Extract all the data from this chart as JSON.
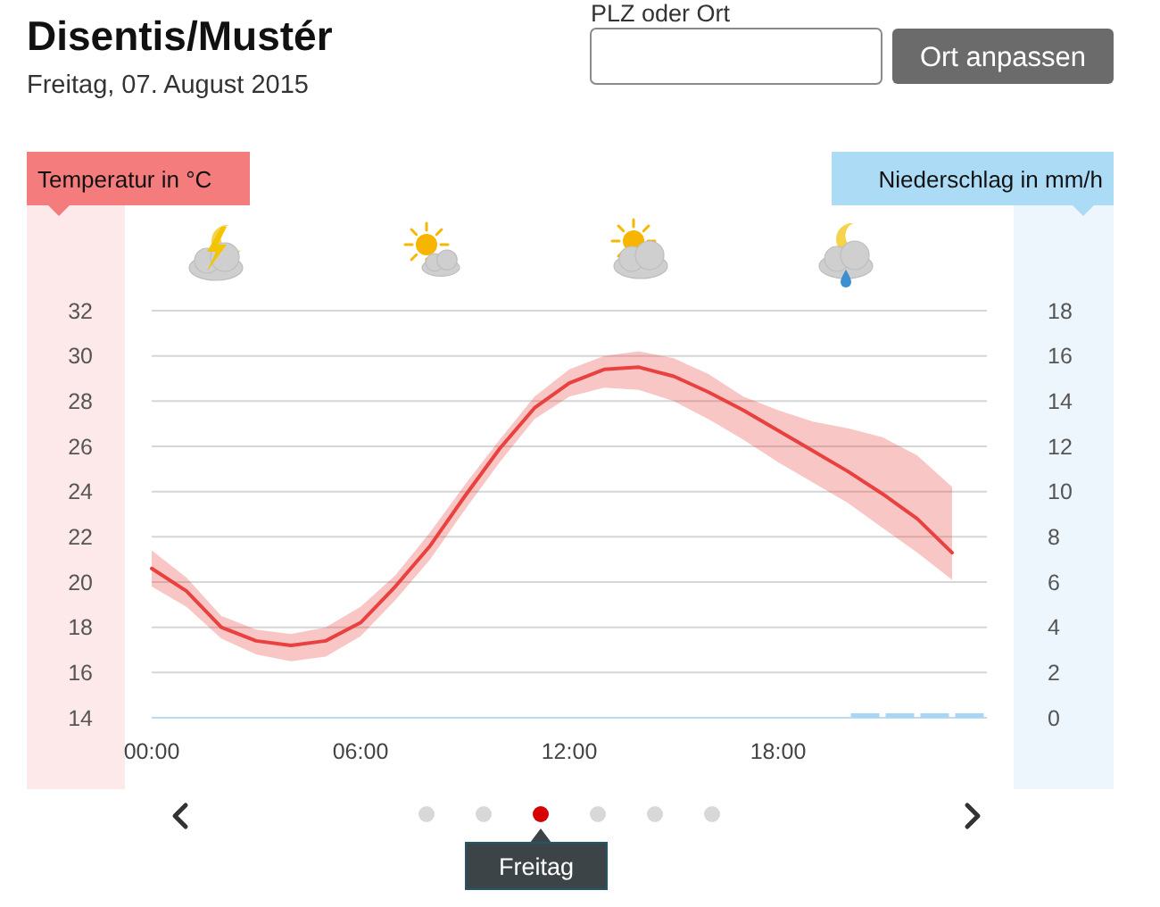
{
  "chart_data": {
    "type": "line",
    "title": "Disentis/Mustér",
    "subtitle": "Freitag, 07. August 2015",
    "ylabel": "Temperatur in °C",
    "y2label": "Niederschlag in mm/h",
    "annotations": [
      "PLZ oder Ort",
      "Ort anpassen",
      "Freitag"
    ],
    "x": [
      0,
      1,
      2,
      3,
      4,
      5,
      6,
      7,
      8,
      9,
      10,
      11,
      12,
      13,
      14,
      15,
      16,
      17,
      18,
      19,
      20,
      21,
      22,
      23
    ],
    "xlim": [
      0,
      24
    ],
    "xticks": [
      {
        "value": 0,
        "label": "00:00"
      },
      {
        "value": 6,
        "label": "06:00"
      },
      {
        "value": 12,
        "label": "12:00"
      },
      {
        "value": 18,
        "label": "18:00"
      }
    ],
    "ylim": [
      14,
      32
    ],
    "yticks": [
      14,
      16,
      18,
      20,
      22,
      24,
      26,
      28,
      30,
      32
    ],
    "y2lim": [
      0,
      18
    ],
    "y2ticks": [
      0,
      2,
      4,
      6,
      8,
      10,
      12,
      14,
      16,
      18
    ],
    "grid": "y",
    "series": [
      {
        "color": "#e8413f",
        "values": [
          20.6,
          19.6,
          18.0,
          17.4,
          17.2,
          17.4,
          18.2,
          19.8,
          21.6,
          23.8,
          25.9,
          27.7,
          28.8,
          29.4,
          29.5,
          29.1,
          28.4,
          27.6,
          26.7,
          25.8,
          24.9,
          23.9,
          22.8,
          21.3
        ],
        "lower": [
          19.8,
          18.9,
          17.5,
          16.8,
          16.5,
          16.7,
          17.6,
          19.2,
          21.0,
          23.2,
          25.3,
          27.2,
          28.2,
          28.6,
          28.5,
          28.0,
          27.2,
          26.3,
          25.3,
          24.4,
          23.5,
          22.4,
          21.3,
          20.1
        ],
        "upper": [
          21.4,
          20.2,
          18.5,
          17.9,
          17.7,
          18.0,
          18.9,
          20.3,
          22.2,
          24.3,
          26.3,
          28.2,
          29.4,
          30.0,
          30.2,
          29.9,
          29.2,
          28.2,
          27.6,
          27.1,
          26.8,
          26.4,
          25.6,
          24.2
        ]
      },
      {
        "type": "bar",
        "axis": "y2",
        "color": "#a9d6f2",
        "x": [
          20.5,
          21.5,
          22.5,
          23.5
        ],
        "values": [
          0.2,
          0.2,
          0.2,
          0.2
        ]
      }
    ]
  }
}
